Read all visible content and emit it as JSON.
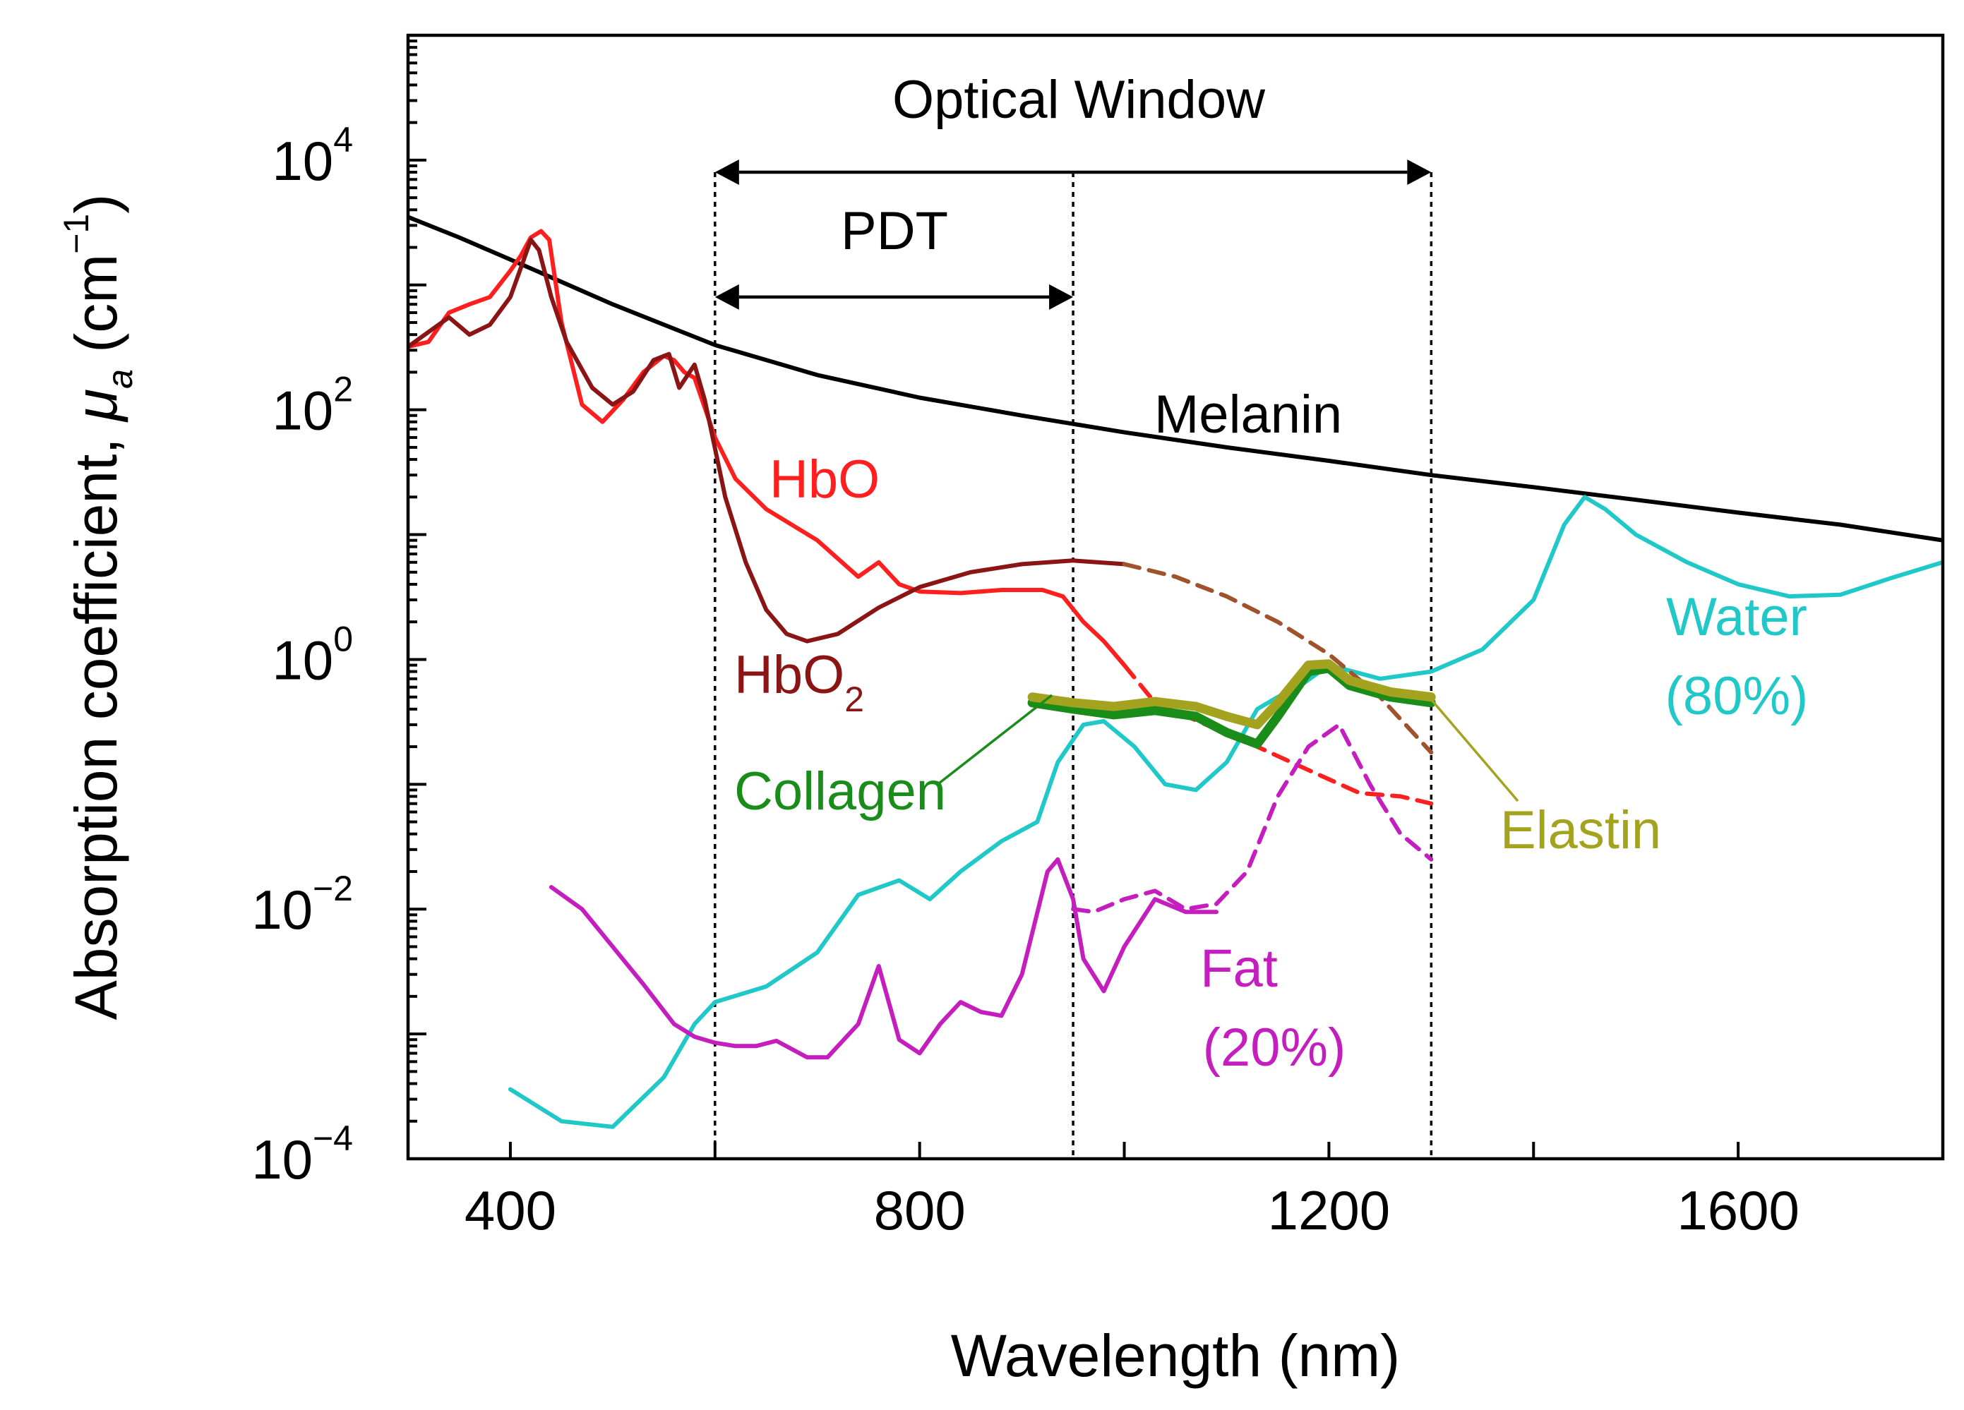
{
  "chart_data": {
    "type": "line",
    "xlabel": "Wavelength (nm)",
    "ylabel": "Absorption coefficient, μa (cm−1)",
    "ylabel_parts": {
      "main": "Absorption coefficient, ",
      "symbol": "μ",
      "sub": "a",
      "unit_open": " (cm",
      "unit_sup": "−1",
      "unit_close": ")"
    },
    "xlim": [
      300,
      1800
    ],
    "ylim": [
      0.0001,
      100000
    ],
    "yscale": "log",
    "x_ticks": [
      400,
      800,
      1200,
      1600
    ],
    "x_minor_ticks": [
      600,
      1000,
      1400
    ],
    "y_ticks": [
      {
        "value": 0.0001,
        "base": "10",
        "exp": "−4"
      },
      {
        "value": 0.01,
        "base": "10",
        "exp": "−2"
      },
      {
        "value": 1,
        "base": "10",
        "exp": "0"
      },
      {
        "value": 100,
        "base": "10",
        "exp": "2"
      },
      {
        "value": 10000,
        "base": "10",
        "exp": "4"
      }
    ],
    "vertical_lines": [
      600,
      950,
      1300
    ],
    "regions": [
      {
        "label": "Optical Window",
        "x_start": 600,
        "x_end": 1300,
        "y_level": 8000
      },
      {
        "label": "PDT",
        "x_start": 600,
        "x_end": 950,
        "y_level": 800
      }
    ],
    "series": [
      {
        "name": "Melanin",
        "color": "#000000",
        "width": 6,
        "points": [
          [
            300,
            3500
          ],
          [
            350,
            2400
          ],
          [
            400,
            1600
          ],
          [
            500,
            700
          ],
          [
            600,
            330
          ],
          [
            700,
            190
          ],
          [
            800,
            125
          ],
          [
            900,
            90
          ],
          [
            1000,
            66
          ],
          [
            1100,
            50
          ],
          [
            1200,
            39
          ],
          [
            1300,
            30
          ],
          [
            1400,
            24
          ],
          [
            1500,
            19
          ],
          [
            1600,
            15
          ],
          [
            1700,
            12
          ],
          [
            1800,
            9
          ]
        ]
      },
      {
        "name": "Water (80%)",
        "color": "#20C8C8",
        "width": 6,
        "points": [
          [
            400,
            0.00036
          ],
          [
            450,
            0.0002
          ],
          [
            500,
            0.00018
          ],
          [
            550,
            0.00045
          ],
          [
            580,
            0.0012
          ],
          [
            600,
            0.0018
          ],
          [
            650,
            0.0024
          ],
          [
            700,
            0.0045
          ],
          [
            740,
            0.013
          ],
          [
            780,
            0.017
          ],
          [
            810,
            0.012
          ],
          [
            840,
            0.02
          ],
          [
            880,
            0.035
          ],
          [
            915,
            0.05
          ],
          [
            935,
            0.15
          ],
          [
            960,
            0.3
          ],
          [
            980,
            0.32
          ],
          [
            1010,
            0.2
          ],
          [
            1040,
            0.1
          ],
          [
            1070,
            0.09
          ],
          [
            1100,
            0.15
          ],
          [
            1130,
            0.4
          ],
          [
            1150,
            0.5
          ],
          [
            1170,
            0.6
          ],
          [
            1200,
            0.9
          ],
          [
            1250,
            0.7
          ],
          [
            1300,
            0.8
          ],
          [
            1350,
            1.2
          ],
          [
            1400,
            3
          ],
          [
            1430,
            12
          ],
          [
            1450,
            20
          ],
          [
            1470,
            16
          ],
          [
            1500,
            10
          ],
          [
            1550,
            6
          ],
          [
            1600,
            4
          ],
          [
            1650,
            3.2
          ],
          [
            1700,
            3.3
          ],
          [
            1750,
            4.5
          ],
          [
            1800,
            6
          ]
        ]
      },
      {
        "name": "HbO",
        "color": "#FF1F1F",
        "width": 6,
        "points": [
          [
            300,
            320
          ],
          [
            320,
            350
          ],
          [
            340,
            600
          ],
          [
            360,
            700
          ],
          [
            380,
            800
          ],
          [
            400,
            1300
          ],
          [
            410,
            1700
          ],
          [
            420,
            2400
          ],
          [
            430,
            2700
          ],
          [
            438,
            2300
          ],
          [
            450,
            500
          ],
          [
            470,
            110
          ],
          [
            490,
            80
          ],
          [
            510,
            120
          ],
          [
            530,
            200
          ],
          [
            550,
            270
          ],
          [
            560,
            250
          ],
          [
            570,
            200
          ],
          [
            580,
            180
          ],
          [
            600,
            60
          ],
          [
            620,
            28
          ],
          [
            650,
            16
          ],
          [
            700,
            9
          ],
          [
            740,
            4.6
          ],
          [
            760,
            6
          ],
          [
            780,
            4
          ],
          [
            800,
            3.5
          ],
          [
            840,
            3.4
          ],
          [
            880,
            3.6
          ],
          [
            920,
            3.6
          ],
          [
            940,
            3.2
          ],
          [
            960,
            2
          ],
          [
            980,
            1.4
          ],
          [
            1000,
            0.9
          ]
        ]
      },
      {
        "name": "HbO dashed",
        "color": "#FF1F1F",
        "width": 6,
        "dash": "22 14",
        "points": [
          [
            1000,
            0.9
          ],
          [
            1030,
            0.45
          ],
          [
            1080,
            0.3
          ],
          [
            1130,
            0.2
          ],
          [
            1180,
            0.13
          ],
          [
            1230,
            0.085
          ],
          [
            1270,
            0.08
          ],
          [
            1300,
            0.07
          ]
        ]
      },
      {
        "name": "HbO2",
        "color": "#8B1414",
        "width": 6,
        "points": [
          [
            300,
            320
          ],
          [
            320,
            420
          ],
          [
            340,
            550
          ],
          [
            360,
            400
          ],
          [
            380,
            480
          ],
          [
            400,
            800
          ],
          [
            412,
            1500
          ],
          [
            420,
            2300
          ],
          [
            428,
            1900
          ],
          [
            440,
            800
          ],
          [
            455,
            350
          ],
          [
            480,
            150
          ],
          [
            500,
            110
          ],
          [
            520,
            140
          ],
          [
            540,
            250
          ],
          [
            555,
            280
          ],
          [
            565,
            150
          ],
          [
            580,
            230
          ],
          [
            590,
            120
          ],
          [
            610,
            20
          ],
          [
            630,
            6
          ],
          [
            650,
            2.5
          ],
          [
            670,
            1.6
          ],
          [
            690,
            1.4
          ],
          [
            720,
            1.6
          ],
          [
            760,
            2.6
          ],
          [
            800,
            3.8
          ],
          [
            850,
            5
          ],
          [
            900,
            5.8
          ],
          [
            950,
            6.2
          ],
          [
            1000,
            5.8
          ]
        ]
      },
      {
        "name": "HbO2 dashed",
        "color": "#A0522D",
        "width": 6,
        "dash": "22 14",
        "points": [
          [
            1000,
            5.8
          ],
          [
            1050,
            4.6
          ],
          [
            1100,
            3.2
          ],
          [
            1150,
            2
          ],
          [
            1200,
            1.1
          ],
          [
            1250,
            0.5
          ],
          [
            1300,
            0.18
          ]
        ]
      },
      {
        "name": "Fat (20%)",
        "color": "#C41EBE",
        "width": 6,
        "points": [
          [
            440,
            0.015
          ],
          [
            470,
            0.01
          ],
          [
            500,
            0.005
          ],
          [
            530,
            0.0025
          ],
          [
            560,
            0.0012
          ],
          [
            580,
            0.00095
          ],
          [
            600,
            0.00085
          ],
          [
            620,
            0.0008
          ],
          [
            640,
            0.0008
          ],
          [
            660,
            0.00088
          ],
          [
            690,
            0.00065
          ],
          [
            710,
            0.00065
          ],
          [
            740,
            0.0012
          ],
          [
            760,
            0.0035
          ],
          [
            780,
            0.0009
          ],
          [
            800,
            0.0007
          ],
          [
            820,
            0.0012
          ],
          [
            840,
            0.0018
          ],
          [
            860,
            0.0015
          ],
          [
            880,
            0.0014
          ],
          [
            900,
            0.003
          ],
          [
            925,
            0.02
          ],
          [
            935,
            0.025
          ],
          [
            950,
            0.012
          ],
          [
            960,
            0.004
          ],
          [
            980,
            0.0022
          ],
          [
            1000,
            0.005
          ],
          [
            1030,
            0.012
          ],
          [
            1060,
            0.0095
          ],
          [
            1090,
            0.0095
          ]
        ]
      },
      {
        "name": "Fat dashed",
        "color": "#C41EBE",
        "width": 6,
        "dash": "22 14",
        "points": [
          [
            950,
            0.01
          ],
          [
            970,
            0.0095
          ],
          [
            1000,
            0.012
          ],
          [
            1030,
            0.014
          ],
          [
            1060,
            0.01
          ],
          [
            1090,
            0.011
          ],
          [
            1120,
            0.02
          ],
          [
            1150,
            0.08
          ],
          [
            1180,
            0.2
          ],
          [
            1210,
            0.3
          ],
          [
            1240,
            0.1
          ],
          [
            1270,
            0.04
          ],
          [
            1300,
            0.025
          ]
        ]
      },
      {
        "name": "Collagen",
        "color": "#1A8C1A",
        "width": 13,
        "points": [
          [
            910,
            0.45
          ],
          [
            950,
            0.4
          ],
          [
            990,
            0.36
          ],
          [
            1030,
            0.39
          ],
          [
            1070,
            0.35
          ],
          [
            1100,
            0.26
          ],
          [
            1130,
            0.21
          ],
          [
            1150,
            0.35
          ],
          [
            1180,
            0.8
          ],
          [
            1200,
            0.85
          ],
          [
            1220,
            0.62
          ],
          [
            1260,
            0.5
          ],
          [
            1300,
            0.45
          ]
        ]
      },
      {
        "name": "Elastin",
        "color": "#A3A320",
        "width": 13,
        "points": [
          [
            910,
            0.5
          ],
          [
            950,
            0.45
          ],
          [
            990,
            0.42
          ],
          [
            1030,
            0.46
          ],
          [
            1070,
            0.42
          ],
          [
            1100,
            0.35
          ],
          [
            1130,
            0.3
          ],
          [
            1150,
            0.45
          ],
          [
            1180,
            0.9
          ],
          [
            1200,
            0.92
          ],
          [
            1220,
            0.68
          ],
          [
            1260,
            0.55
          ],
          [
            1300,
            0.5
          ]
        ]
      }
    ],
    "labels": [
      {
        "text": "Melanin",
        "color": "#000000"
      },
      {
        "text": "HbO",
        "color": "#FF1F1F"
      },
      {
        "text": "HbO",
        "sub": "2",
        "color": "#8B1414"
      },
      {
        "text": "Collagen",
        "color": "#1A8C1A"
      },
      {
        "text": "Elastin",
        "color": "#A3A320"
      },
      {
        "text": "Water",
        "line2": "(80%)",
        "color": "#20C8C8"
      },
      {
        "text": "Fat",
        "line2": "(20%)",
        "color": "#C41EBE"
      }
    ]
  }
}
